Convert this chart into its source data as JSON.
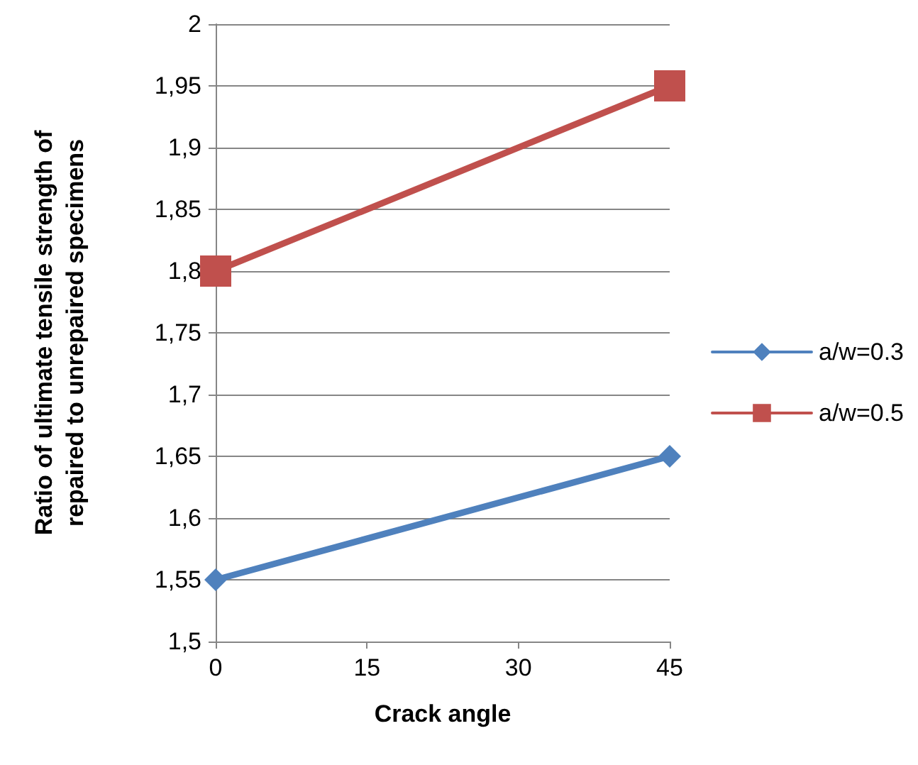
{
  "chart_data": {
    "type": "line",
    "xlabel": "Crack angle",
    "ylabel": "Ratio of ultimate tensile strength of\nrepaired to unrepaired specimens",
    "x": [
      0,
      45
    ],
    "series": [
      {
        "name": "a/w=0.3",
        "color": "#4f81bd",
        "values": [
          1.55,
          1.65
        ],
        "marker": "diamond"
      },
      {
        "name": "a/w=0.5",
        "color": "#c0504d",
        "values": [
          1.8,
          1.95
        ],
        "marker": "square"
      }
    ],
    "xlim": [
      0,
      45
    ],
    "xticks": [
      0,
      15,
      30,
      45
    ],
    "ylim": [
      1.5,
      2
    ],
    "yticks": [
      {
        "value": 1.5,
        "label": "1,5"
      },
      {
        "value": 1.55,
        "label": "1,55"
      },
      {
        "value": 1.6,
        "label": "1,6"
      },
      {
        "value": 1.65,
        "label": "1,65"
      },
      {
        "value": 1.7,
        "label": "1,7"
      },
      {
        "value": 1.75,
        "label": "1,75"
      },
      {
        "value": 1.8,
        "label": "1,8"
      },
      {
        "value": 1.85,
        "label": "1,85"
      },
      {
        "value": 1.9,
        "label": "1,9"
      },
      {
        "value": 1.95,
        "label": "1,95"
      },
      {
        "value": 2,
        "label": "2"
      }
    ],
    "grid": "y",
    "legend": "right",
    "line_style": "solid"
  }
}
